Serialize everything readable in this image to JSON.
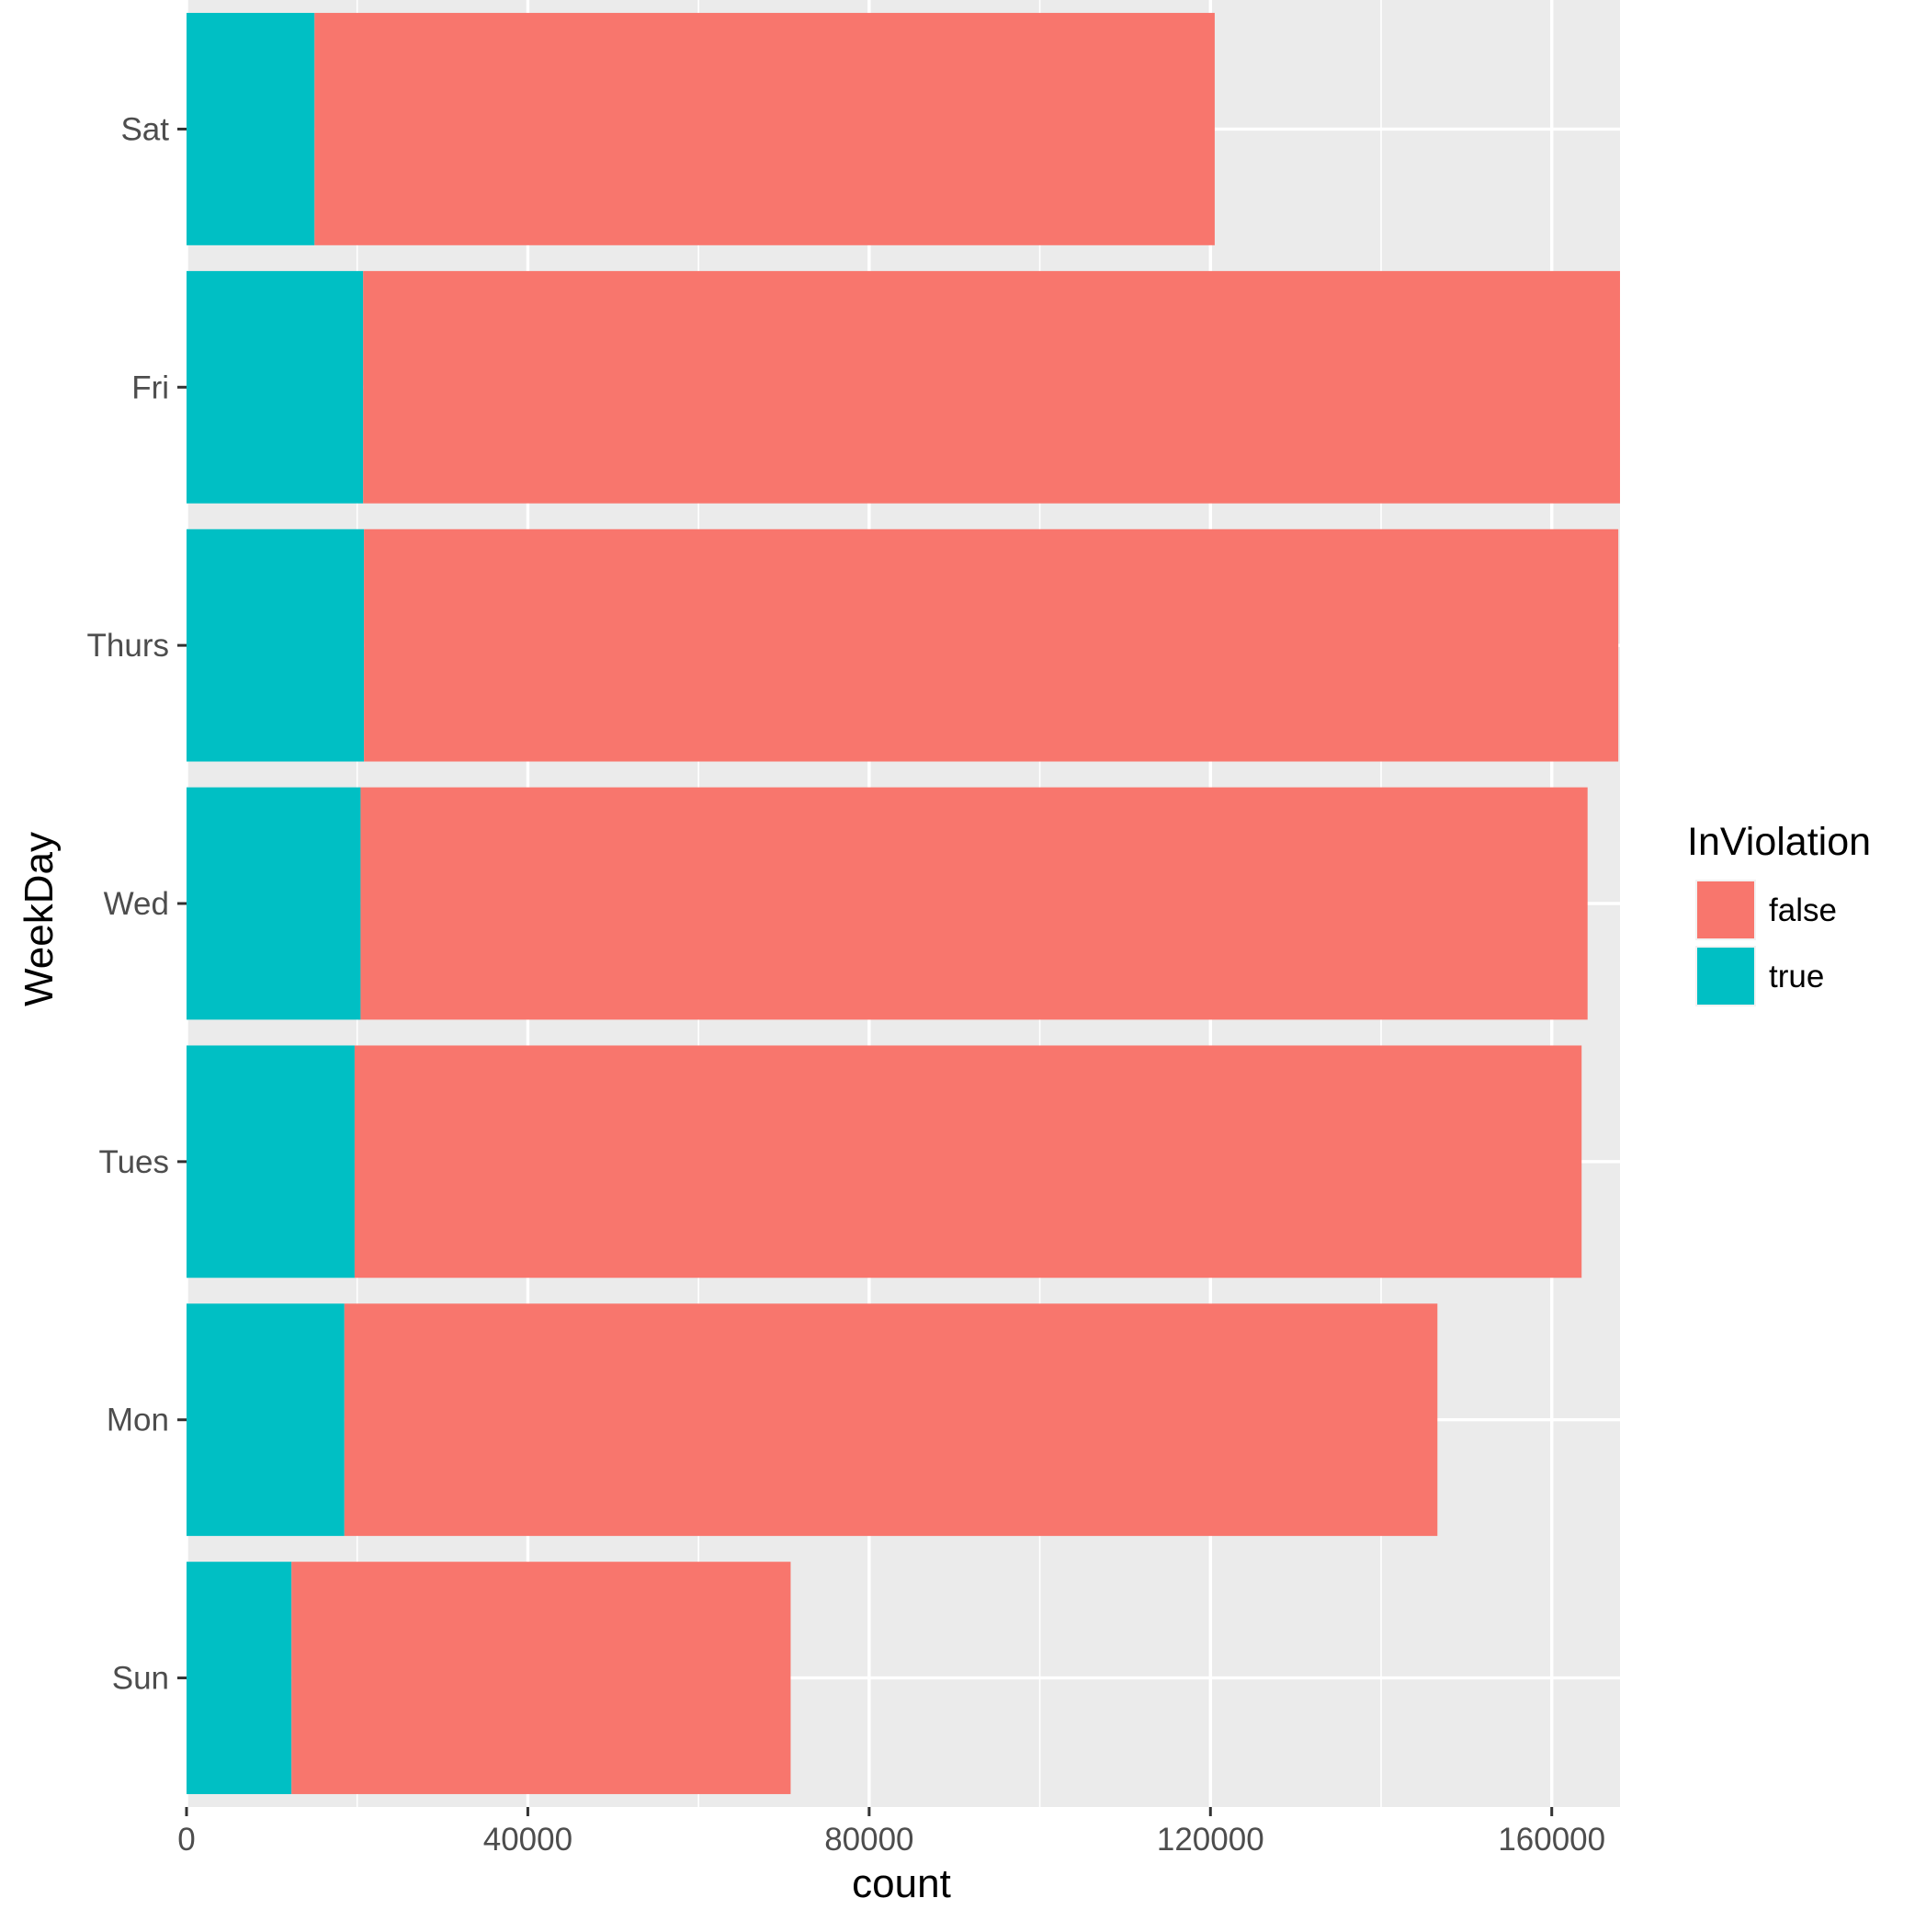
{
  "chart_data": {
    "type": "bar",
    "orientation": "horizontal",
    "stacked": true,
    "title": "",
    "xlabel": "count",
    "ylabel": "WeekDay",
    "xlim": [
      0,
      168000
    ],
    "x_ticks": [
      0,
      40000,
      80000,
      120000,
      160000
    ],
    "x_tick_labels": [
      "0",
      "40000",
      "80000",
      "120000",
      "160000"
    ],
    "x_minor_ticks": [
      20000,
      60000,
      100000,
      140000
    ],
    "grid": true,
    "categories": [
      "Sun",
      "Mon",
      "Tues",
      "Wed",
      "Thurs",
      "Fri",
      "Sat"
    ],
    "series": [
      {
        "name": "true",
        "color": "#00BFC4",
        "values": [
          12300,
          18500,
          19700,
          20400,
          20800,
          20700,
          15000
        ]
      },
      {
        "name": "false",
        "color": "#F8766D",
        "values": [
          58500,
          128100,
          143800,
          143800,
          147000,
          147300,
          105500
        ]
      }
    ],
    "totals": [
      70800,
      146600,
      163500,
      164200,
      167800,
      168000,
      120500
    ],
    "legend": {
      "title": "InViolation",
      "position": "right",
      "entries": [
        {
          "label": "false",
          "color": "#F8766D"
        },
        {
          "label": "true",
          "color": "#00BFC4"
        }
      ]
    },
    "panel_background": "#EBEBEB",
    "grid_color": "#FFFFFF"
  }
}
